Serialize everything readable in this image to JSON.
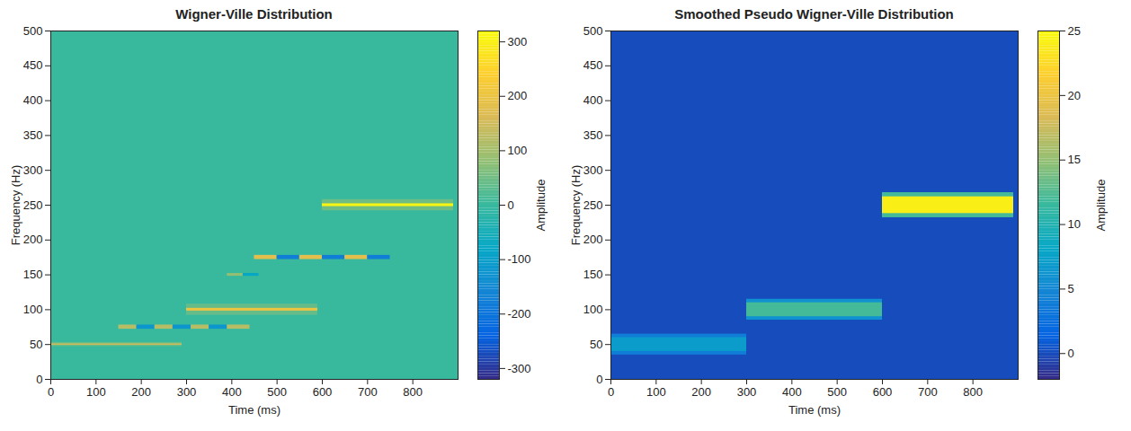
{
  "chart_data": [
    {
      "type": "heatmap",
      "title": "Wigner-Ville Distribution",
      "x_label": "Time (ms)",
      "y_label": "Frequency (Hz)",
      "xlim": [
        0,
        900
      ],
      "ylim": [
        0,
        500
      ],
      "xticks": [
        0,
        100,
        200,
        300,
        400,
        500,
        600,
        700,
        800
      ],
      "yticks": [
        0,
        50,
        100,
        150,
        200,
        250,
        300,
        350,
        400,
        450,
        500
      ],
      "grid": false,
      "background": 0,
      "colorbar": {
        "label": "Amplitude",
        "range": [
          -320,
          320
        ],
        "ticks": [
          -300,
          -200,
          -100,
          0,
          100,
          200,
          300
        ]
      },
      "cells": [
        {
          "x1": 0,
          "x2": 290,
          "y1": 47,
          "y2": 53,
          "value": 40
        },
        {
          "x1": 0,
          "x2": 290,
          "y1": 49,
          "y2": 51,
          "value": 150
        },
        {
          "x1": 300,
          "x2": 590,
          "y1": 92,
          "y2": 108,
          "value": 40
        },
        {
          "x1": 300,
          "x2": 590,
          "y1": 98,
          "y2": 102,
          "value": 200
        },
        {
          "x1": 600,
          "x2": 890,
          "y1": 242,
          "y2": 258,
          "value": 50
        },
        {
          "x1": 600,
          "x2": 890,
          "y1": 248,
          "y2": 252,
          "value": 310
        },
        {
          "x1": 150,
          "x2": 190,
          "y1": 72,
          "y2": 78,
          "value": 120
        },
        {
          "x1": 190,
          "x2": 230,
          "y1": 72,
          "y2": 78,
          "value": -120
        },
        {
          "x1": 230,
          "x2": 270,
          "y1": 72,
          "y2": 78,
          "value": 120
        },
        {
          "x1": 270,
          "x2": 310,
          "y1": 72,
          "y2": 78,
          "value": -120
        },
        {
          "x1": 310,
          "x2": 350,
          "y1": 72,
          "y2": 78,
          "value": 120
        },
        {
          "x1": 350,
          "x2": 390,
          "y1": 72,
          "y2": 78,
          "value": -120
        },
        {
          "x1": 390,
          "x2": 440,
          "y1": 72,
          "y2": 78,
          "value": 120
        },
        {
          "x1": 390,
          "x2": 425,
          "y1": 148,
          "y2": 152,
          "value": 80
        },
        {
          "x1": 425,
          "x2": 460,
          "y1": 148,
          "y2": 152,
          "value": -80
        },
        {
          "x1": 450,
          "x2": 500,
          "y1": 172,
          "y2": 178,
          "value": 180
        },
        {
          "x1": 500,
          "x2": 550,
          "y1": 172,
          "y2": 178,
          "value": -180
        },
        {
          "x1": 550,
          "x2": 600,
          "y1": 172,
          "y2": 178,
          "value": 180
        },
        {
          "x1": 600,
          "x2": 650,
          "y1": 172,
          "y2": 178,
          "value": -180
        },
        {
          "x1": 650,
          "x2": 700,
          "y1": 172,
          "y2": 178,
          "value": 180
        },
        {
          "x1": 700,
          "x2": 750,
          "y1": 172,
          "y2": 178,
          "value": -180
        }
      ]
    },
    {
      "type": "heatmap",
      "title": "Smoothed Pseudo Wigner-Ville Distribution",
      "x_label": "Time (ms)",
      "y_label": "Frequency (Hz)",
      "xlim": [
        0,
        900
      ],
      "ylim": [
        0,
        500
      ],
      "xticks": [
        0,
        100,
        200,
        300,
        400,
        500,
        600,
        700,
        800
      ],
      "yticks": [
        0,
        50,
        100,
        150,
        200,
        250,
        300,
        350,
        400,
        450,
        500
      ],
      "grid": false,
      "background": 0,
      "colorbar": {
        "label": "Amplitude",
        "range": [
          -2,
          25
        ],
        "ticks": [
          0,
          5,
          10,
          15,
          20,
          25
        ]
      },
      "cells": [
        {
          "x1": 0,
          "x2": 300,
          "y1": 35,
          "y2": 65,
          "value": 4
        },
        {
          "x1": 0,
          "x2": 300,
          "y1": 40,
          "y2": 60,
          "value": 7
        },
        {
          "x1": 300,
          "x2": 600,
          "y1": 85,
          "y2": 115,
          "value": 6
        },
        {
          "x1": 300,
          "x2": 600,
          "y1": 90,
          "y2": 110,
          "value": 12
        },
        {
          "x1": 600,
          "x2": 890,
          "y1": 232,
          "y2": 268,
          "value": 12
        },
        {
          "x1": 600,
          "x2": 890,
          "y1": 238,
          "y2": 262,
          "value": 24
        }
      ]
    }
  ]
}
